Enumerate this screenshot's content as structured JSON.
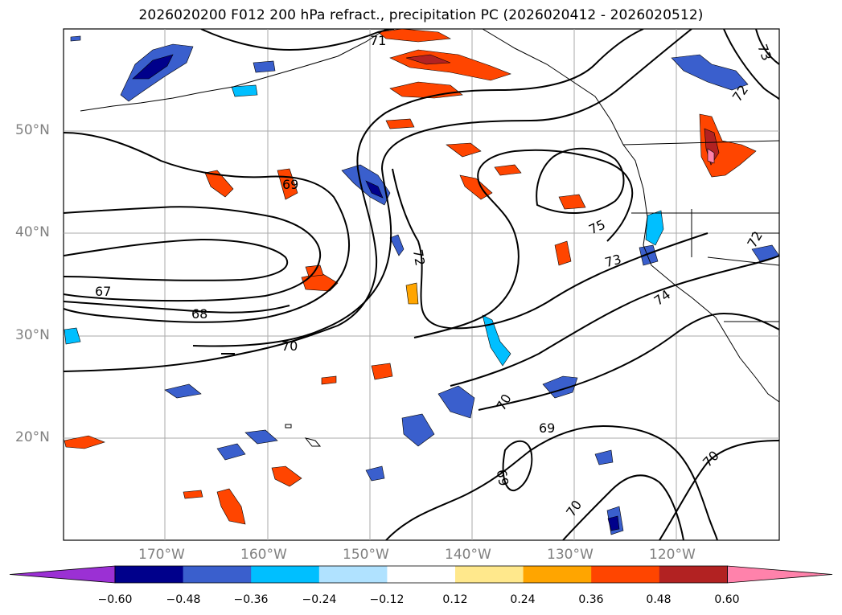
{
  "title": "2026020200 F012 200 hPa refract., precipitation PC (2026020412 - 2026020512)",
  "lat_labels": [
    "50°N",
    "40°N",
    "30°N",
    "20°N"
  ],
  "lon_labels": [
    "170°W",
    "160°W",
    "150°W",
    "140°W",
    "130°W",
    "120°W"
  ],
  "contour_labels": [
    "71",
    "69",
    "67",
    "68",
    "70",
    "72",
    "75",
    "73",
    "74",
    "72",
    "73",
    "70",
    "69",
    "69",
    "70",
    "70",
    "72"
  ],
  "colorbar": {
    "ticks": [
      "−0.60",
      "−0.48",
      "−0.36",
      "−0.24",
      "−0.12",
      "0.12",
      "0.24",
      "0.36",
      "0.48",
      "0.60"
    ],
    "colors": [
      "#9b30d4",
      "#00008b",
      "#3a5fcd",
      "#00bfff",
      "#b0e2ff",
      "#ffffff",
      "#ffe88c",
      "#ffa500",
      "#ff4500",
      "#b22222",
      "#ff82ab"
    ]
  }
}
